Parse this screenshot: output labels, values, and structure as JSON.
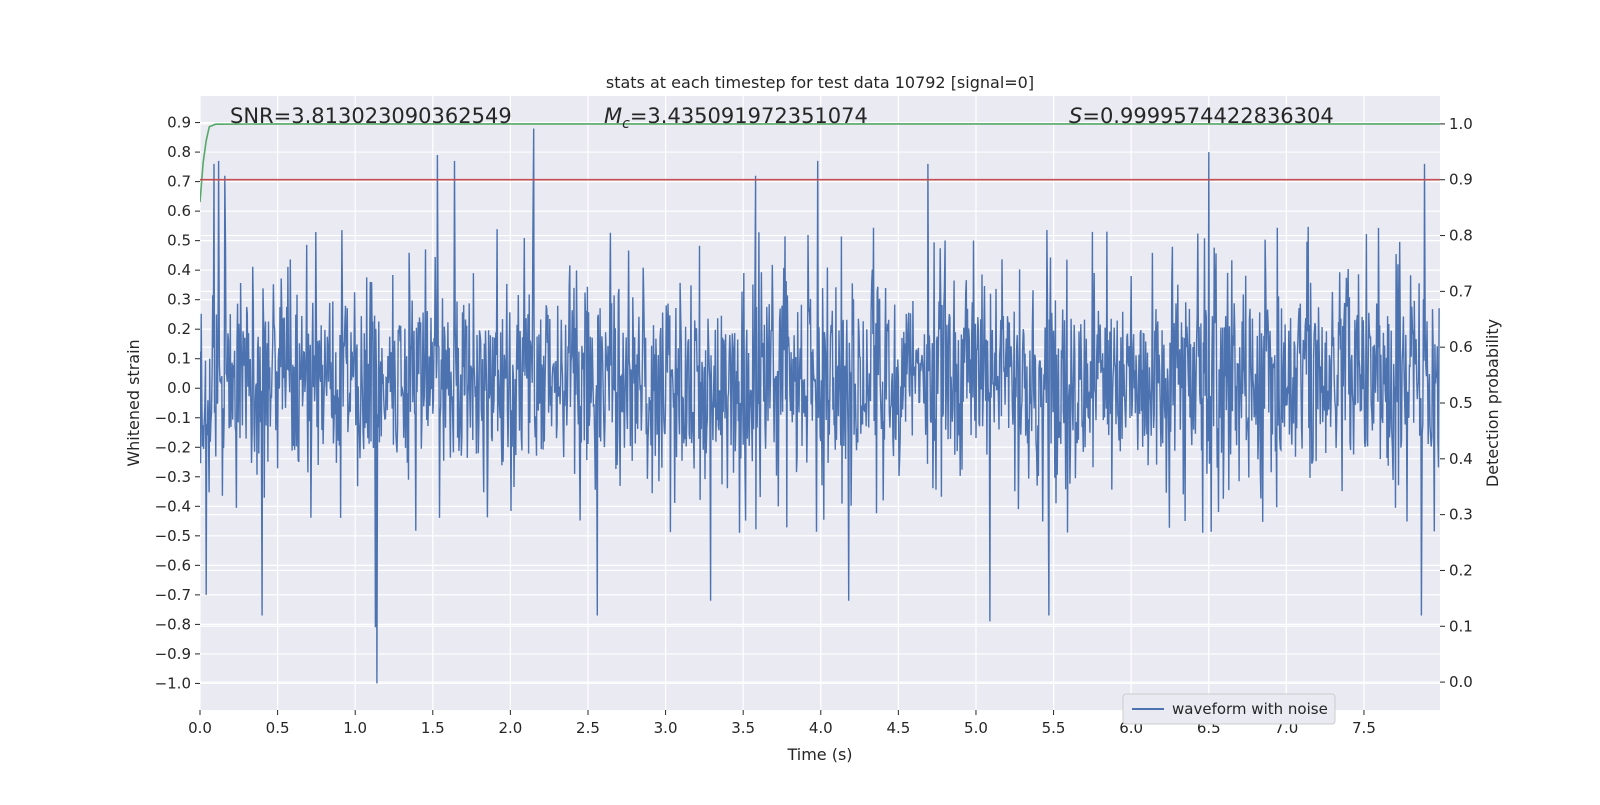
{
  "chart_data": {
    "type": "line",
    "title": "stats at each timestep for test data 10792 [signal=0]",
    "xlabel": "Time (s)",
    "ylabel_left": "Whitened strain",
    "ylabel_right": "Detection probability",
    "xlim": [
      0.0,
      7.99
    ],
    "ylim_left": [
      -1.09,
      0.99
    ],
    "ylim_right": [
      -0.05,
      1.05
    ],
    "x_ticks": [
      0.0,
      0.5,
      1.0,
      1.5,
      2.0,
      2.5,
      3.0,
      3.5,
      4.0,
      4.5,
      5.0,
      5.5,
      6.0,
      6.5,
      7.0,
      7.5
    ],
    "x_tick_labels": [
      "0.0",
      "0.5",
      "1.0",
      "1.5",
      "2.0",
      "2.5",
      "3.0",
      "3.5",
      "4.0",
      "4.5",
      "5.0",
      "5.5",
      "6.0",
      "6.5",
      "7.0",
      "7.5"
    ],
    "y_left_ticks": [
      -1.0,
      -0.9,
      -0.8,
      -0.7,
      -0.6,
      -0.5,
      -0.4,
      -0.3,
      -0.2,
      -0.1,
      0.0,
      0.1,
      0.2,
      0.3,
      0.4,
      0.5,
      0.6,
      0.7,
      0.8,
      0.9
    ],
    "y_left_tick_labels": [
      "−1.0",
      "−0.9",
      "−0.8",
      "−0.7",
      "−0.6",
      "−0.5",
      "−0.4",
      "−0.3",
      "−0.2",
      "−0.1",
      "0.0",
      "0.1",
      "0.2",
      "0.3",
      "0.4",
      "0.5",
      "0.6",
      "0.7",
      "0.8",
      "0.9"
    ],
    "y_right_ticks": [
      0.0,
      0.1,
      0.2,
      0.3,
      0.4,
      0.5,
      0.6,
      0.7,
      0.8,
      0.9,
      1.0
    ],
    "y_right_tick_labels": [
      "0.0",
      "0.1",
      "0.2",
      "0.3",
      "0.4",
      "0.5",
      "0.6",
      "0.7",
      "0.8",
      "0.9",
      "1.0"
    ],
    "grid": true,
    "legend": {
      "position": "lower-right",
      "entries": [
        "waveform with noise"
      ]
    },
    "annotations": {
      "snr": "SNR=3.813023090362549",
      "mc_symbol": "M",
      "mc_subscript": "c",
      "mc_value": "=3.435091972351074",
      "s_symbol": "S",
      "s_value": "=0.9999574422836304"
    },
    "series": [
      {
        "name": "waveform with noise",
        "axis": "left",
        "color": "#4c72b0",
        "sample_rate": 256,
        "envelope": {
          "core_band": [
            -0.17,
            0.23
          ],
          "typical_range": [
            -0.45,
            0.55
          ],
          "max": 0.88,
          "max_at": 2.15,
          "min": -1.0,
          "min_at": 1.14
        },
        "peaks": [
          {
            "x": 0.09,
            "y": 0.76
          },
          {
            "x": 0.12,
            "y": 0.77
          },
          {
            "x": 0.16,
            "y": 0.72
          },
          {
            "x": 1.53,
            "y": 0.79
          },
          {
            "x": 1.64,
            "y": 0.77
          },
          {
            "x": 2.15,
            "y": 0.88
          },
          {
            "x": 3.58,
            "y": 0.72
          },
          {
            "x": 3.98,
            "y": 0.77
          },
          {
            "x": 4.69,
            "y": 0.76
          },
          {
            "x": 6.5,
            "y": 0.8
          },
          {
            "x": 7.89,
            "y": 0.76
          }
        ],
        "troughs": [
          {
            "x": 0.04,
            "y": -0.7
          },
          {
            "x": 0.4,
            "y": -0.77
          },
          {
            "x": 1.13,
            "y": -0.81
          },
          {
            "x": 1.14,
            "y": -1.0
          },
          {
            "x": 2.56,
            "y": -0.77
          },
          {
            "x": 3.29,
            "y": -0.72
          },
          {
            "x": 4.18,
            "y": -0.72
          },
          {
            "x": 5.09,
            "y": -0.79
          },
          {
            "x": 5.47,
            "y": -0.77
          },
          {
            "x": 7.87,
            "y": -0.77
          }
        ]
      },
      {
        "name": "",
        "axis": "right",
        "color": "#55a868",
        "x": [
          0.0,
          0.02,
          0.04,
          0.06,
          0.1,
          0.5,
          1.0,
          2.0,
          3.0,
          4.0,
          5.0,
          6.0,
          7.0,
          7.99
        ],
        "y": [
          0.86,
          0.93,
          0.97,
          0.995,
          0.9995,
          1.0,
          1.0,
          1.0,
          1.0,
          1.0,
          1.0,
          1.0,
          1.0,
          1.0
        ]
      },
      {
        "name": "",
        "axis": "right",
        "color": "#c44e52",
        "x": [
          0.0,
          7.99
        ],
        "y": [
          0.9,
          0.9
        ]
      }
    ]
  }
}
